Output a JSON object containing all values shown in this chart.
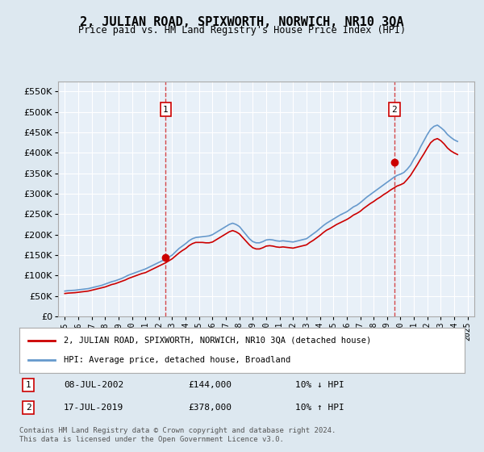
{
  "title": "2, JULIAN ROAD, SPIXWORTH, NORWICH, NR10 3QA",
  "subtitle": "Price paid vs. HM Land Registry's House Price Index (HPI)",
  "background_color": "#dde8f0",
  "plot_bg_color": "#e8f0f8",
  "ylim": [
    0,
    575000
  ],
  "yticks": [
    0,
    50000,
    100000,
    150000,
    200000,
    250000,
    300000,
    350000,
    400000,
    450000,
    500000,
    550000
  ],
  "ytick_labels": [
    "£0",
    "£50K",
    "£100K",
    "£150K",
    "£200K",
    "£250K",
    "£300K",
    "£350K",
    "£400K",
    "£450K",
    "£500K",
    "£550K"
  ],
  "xlim_start": 1994.5,
  "xlim_end": 2025.5,
  "xlabel_years": [
    1995,
    1996,
    1997,
    1998,
    1999,
    2000,
    2001,
    2002,
    2003,
    2004,
    2005,
    2006,
    2007,
    2008,
    2009,
    2010,
    2011,
    2012,
    2013,
    2014,
    2015,
    2016,
    2017,
    2018,
    2019,
    2020,
    2021,
    2022,
    2023,
    2024,
    2025
  ],
  "sale1_x": 2002.52,
  "sale1_y": 144000,
  "sale1_label": "1",
  "sale2_x": 2019.54,
  "sale2_y": 378000,
  "sale2_label": "2",
  "red_line_color": "#cc0000",
  "blue_line_color": "#6699cc",
  "grid_color": "#ffffff",
  "annotation_box_color": "#cc0000",
  "legend_label_red": "2, JULIAN ROAD, SPIXWORTH, NORWICH, NR10 3QA (detached house)",
  "legend_label_blue": "HPI: Average price, detached house, Broadland",
  "note1_label": "1",
  "note1_date": "08-JUL-2002",
  "note1_price": "£144,000",
  "note1_hpi": "10% ↓ HPI",
  "note2_label": "2",
  "note2_date": "17-JUL-2019",
  "note2_price": "£378,000",
  "note2_hpi": "10% ↑ HPI",
  "footer": "Contains HM Land Registry data © Crown copyright and database right 2024.\nThis data is licensed under the Open Government Licence v3.0.",
  "hpi_data_x": [
    1995.0,
    1995.25,
    1995.5,
    1995.75,
    1996.0,
    1996.25,
    1996.5,
    1996.75,
    1997.0,
    1997.25,
    1997.5,
    1997.75,
    1998.0,
    1998.25,
    1998.5,
    1998.75,
    1999.0,
    1999.25,
    1999.5,
    1999.75,
    2000.0,
    2000.25,
    2000.5,
    2000.75,
    2001.0,
    2001.25,
    2001.5,
    2001.75,
    2002.0,
    2002.25,
    2002.5,
    2002.75,
    2003.0,
    2003.25,
    2003.5,
    2003.75,
    2004.0,
    2004.25,
    2004.5,
    2004.75,
    2005.0,
    2005.25,
    2005.5,
    2005.75,
    2006.0,
    2006.25,
    2006.5,
    2006.75,
    2007.0,
    2007.25,
    2007.5,
    2007.75,
    2008.0,
    2008.25,
    2008.5,
    2008.75,
    2009.0,
    2009.25,
    2009.5,
    2009.75,
    2010.0,
    2010.25,
    2010.5,
    2010.75,
    2011.0,
    2011.25,
    2011.5,
    2011.75,
    2012.0,
    2012.25,
    2012.5,
    2012.75,
    2013.0,
    2013.25,
    2013.5,
    2013.75,
    2014.0,
    2014.25,
    2014.5,
    2014.75,
    2015.0,
    2015.25,
    2015.5,
    2015.75,
    2016.0,
    2016.25,
    2016.5,
    2016.75,
    2017.0,
    2017.25,
    2017.5,
    2017.75,
    2018.0,
    2018.25,
    2018.5,
    2018.75,
    2019.0,
    2019.25,
    2019.5,
    2019.75,
    2020.0,
    2020.25,
    2020.5,
    2020.75,
    2021.0,
    2021.25,
    2021.5,
    2021.75,
    2022.0,
    2022.25,
    2022.5,
    2022.75,
    2023.0,
    2023.25,
    2023.5,
    2023.75,
    2024.0,
    2024.25
  ],
  "hpi_data_y": [
    62000,
    63000,
    63500,
    64000,
    65000,
    66000,
    67000,
    68000,
    70000,
    72000,
    74000,
    76000,
    79000,
    82000,
    85000,
    87000,
    90000,
    93000,
    97000,
    101000,
    104000,
    107000,
    110000,
    113000,
    116000,
    120000,
    124000,
    128000,
    132000,
    136000,
    140000,
    145000,
    150000,
    158000,
    166000,
    172000,
    178000,
    185000,
    190000,
    193000,
    194000,
    195000,
    196000,
    197000,
    200000,
    205000,
    210000,
    215000,
    220000,
    225000,
    228000,
    225000,
    220000,
    210000,
    200000,
    190000,
    183000,
    180000,
    180000,
    183000,
    187000,
    188000,
    187000,
    185000,
    184000,
    185000,
    184000,
    183000,
    182000,
    184000,
    186000,
    188000,
    190000,
    196000,
    202000,
    208000,
    215000,
    222000,
    228000,
    233000,
    238000,
    243000,
    248000,
    252000,
    256000,
    262000,
    268000,
    272000,
    278000,
    285000,
    292000,
    298000,
    304000,
    310000,
    316000,
    322000,
    328000,
    334000,
    340000,
    345000,
    348000,
    352000,
    360000,
    370000,
    385000,
    398000,
    415000,
    430000,
    445000,
    458000,
    465000,
    468000,
    462000,
    455000,
    445000,
    438000,
    432000,
    428000
  ],
  "red_data_x": [
    1995.0,
    1995.25,
    1995.5,
    1995.75,
    1996.0,
    1996.25,
    1996.5,
    1996.75,
    1997.0,
    1997.25,
    1997.5,
    1997.75,
    1998.0,
    1998.25,
    1998.5,
    1998.75,
    1999.0,
    1999.25,
    1999.5,
    1999.75,
    2000.0,
    2000.25,
    2000.5,
    2000.75,
    2001.0,
    2001.25,
    2001.5,
    2001.75,
    2002.0,
    2002.25,
    2002.5,
    2002.75,
    2003.0,
    2003.25,
    2003.5,
    2003.75,
    2004.0,
    2004.25,
    2004.5,
    2004.75,
    2005.0,
    2005.25,
    2005.5,
    2005.75,
    2006.0,
    2006.25,
    2006.5,
    2006.75,
    2007.0,
    2007.25,
    2007.5,
    2007.75,
    2008.0,
    2008.25,
    2008.5,
    2008.75,
    2009.0,
    2009.25,
    2009.5,
    2009.75,
    2010.0,
    2010.25,
    2010.5,
    2010.75,
    2011.0,
    2011.25,
    2011.5,
    2011.75,
    2012.0,
    2012.25,
    2012.5,
    2012.75,
    2013.0,
    2013.25,
    2013.5,
    2013.75,
    2014.0,
    2014.25,
    2014.5,
    2014.75,
    2015.0,
    2015.25,
    2015.5,
    2015.75,
    2016.0,
    2016.25,
    2016.5,
    2016.75,
    2017.0,
    2017.25,
    2017.5,
    2017.75,
    2018.0,
    2018.25,
    2018.5,
    2018.75,
    2019.0,
    2019.25,
    2019.5,
    2019.75,
    2020.0,
    2020.25,
    2020.5,
    2020.75,
    2021.0,
    2021.25,
    2021.5,
    2021.75,
    2022.0,
    2022.25,
    2022.5,
    2022.75,
    2023.0,
    2023.25,
    2023.5,
    2023.75,
    2024.0,
    2024.25
  ],
  "red_data_y": [
    56000,
    57000,
    57500,
    58000,
    59000,
    60000,
    61000,
    62000,
    64000,
    66000,
    68000,
    70000,
    72000,
    75000,
    78000,
    80000,
    83000,
    86000,
    89000,
    93000,
    96000,
    99000,
    102000,
    105000,
    107000,
    111000,
    115000,
    119000,
    123000,
    127000,
    131000,
    136000,
    141000,
    148000,
    155000,
    161000,
    166000,
    173000,
    178000,
    181000,
    181000,
    181000,
    180000,
    180000,
    182000,
    187000,
    192000,
    197000,
    202000,
    207000,
    210000,
    207000,
    202000,
    193000,
    184000,
    175000,
    168000,
    165000,
    165000,
    168000,
    172000,
    173000,
    172000,
    170000,
    169000,
    170000,
    169000,
    168000,
    167000,
    169000,
    171000,
    173000,
    175000,
    181000,
    186000,
    192000,
    198000,
    205000,
    211000,
    215000,
    220000,
    225000,
    229000,
    233000,
    237000,
    242000,
    248000,
    252000,
    257000,
    264000,
    270000,
    276000,
    281000,
    287000,
    292000,
    298000,
    303000,
    309000,
    314000,
    319000,
    322000,
    326000,
    335000,
    345000,
    358000,
    371000,
    385000,
    398000,
    412000,
    425000,
    432000,
    435000,
    430000,
    422000,
    412000,
    405000,
    400000,
    396000
  ]
}
